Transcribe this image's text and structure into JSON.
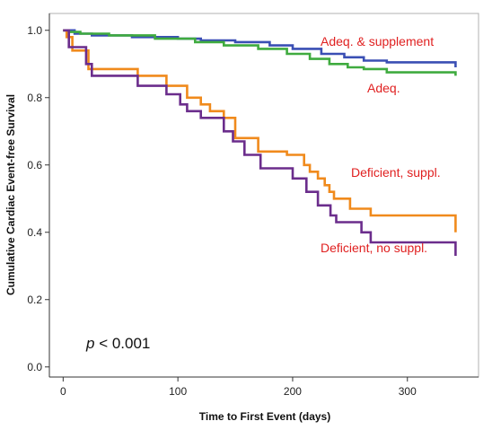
{
  "chart_data": {
    "type": "line",
    "title": "",
    "xlabel": "Time to First Event (days)",
    "ylabel": "Cumulative Cardiac Event-free Survival",
    "xlim": [
      -12,
      362
    ],
    "ylim": [
      -0.03,
      1.05
    ],
    "x_ticks": [
      0,
      100,
      200,
      300
    ],
    "x_tick_labels": [
      "0",
      "100",
      "200",
      "300"
    ],
    "y_ticks": [
      0.0,
      0.2,
      0.4,
      0.6,
      0.8,
      1.0
    ],
    "y_tick_labels": [
      "0.0",
      "0.2",
      "0.4",
      "0.6",
      "0.8",
      "1.0"
    ],
    "grid": false,
    "annotation": {
      "p_symbol": "p",
      "p_text": " < 0.001"
    },
    "series": [
      {
        "name": "Adeq. & supplement",
        "color": "#3a4fb4",
        "x": [
          0,
          10,
          25,
          60,
          100,
          120,
          150,
          180,
          200,
          225,
          245,
          262,
          282,
          342
        ],
        "y": [
          1.0,
          0.99,
          0.985,
          0.98,
          0.975,
          0.97,
          0.965,
          0.955,
          0.945,
          0.93,
          0.92,
          0.91,
          0.905,
          0.89
        ]
      },
      {
        "name": "Adeq.",
        "color": "#3fab3f",
        "x": [
          0,
          5,
          15,
          40,
          80,
          115,
          140,
          170,
          195,
          215,
          232,
          248,
          262,
          282,
          342
        ],
        "y": [
          1.0,
          0.995,
          0.99,
          0.985,
          0.975,
          0.965,
          0.955,
          0.945,
          0.93,
          0.915,
          0.9,
          0.89,
          0.885,
          0.875,
          0.865
        ]
      },
      {
        "name": "Deficient, suppl.",
        "color": "#f08a1c",
        "x": [
          0,
          3,
          8,
          22,
          65,
          90,
          108,
          120,
          128,
          140,
          150,
          170,
          195,
          210,
          215,
          222,
          228,
          232,
          236,
          250,
          268,
          342
        ],
        "y": [
          1.0,
          0.98,
          0.94,
          0.885,
          0.865,
          0.835,
          0.8,
          0.78,
          0.76,
          0.74,
          0.68,
          0.64,
          0.63,
          0.6,
          0.58,
          0.56,
          0.54,
          0.52,
          0.5,
          0.47,
          0.45,
          0.4
        ]
      },
      {
        "name": "Deficient, no suppl.",
        "color": "#6b2d8c",
        "x": [
          0,
          5,
          20,
          25,
          65,
          90,
          102,
          108,
          120,
          140,
          148,
          158,
          172,
          200,
          212,
          222,
          233,
          238,
          260,
          268,
          342
        ],
        "y": [
          1.0,
          0.95,
          0.9,
          0.865,
          0.835,
          0.81,
          0.78,
          0.76,
          0.74,
          0.7,
          0.67,
          0.63,
          0.59,
          0.56,
          0.52,
          0.48,
          0.45,
          0.43,
          0.4,
          0.37,
          0.33
        ]
      }
    ],
    "colors": {
      "label_red": "#e02020",
      "axis": "#333333",
      "frame": "#999999"
    }
  }
}
